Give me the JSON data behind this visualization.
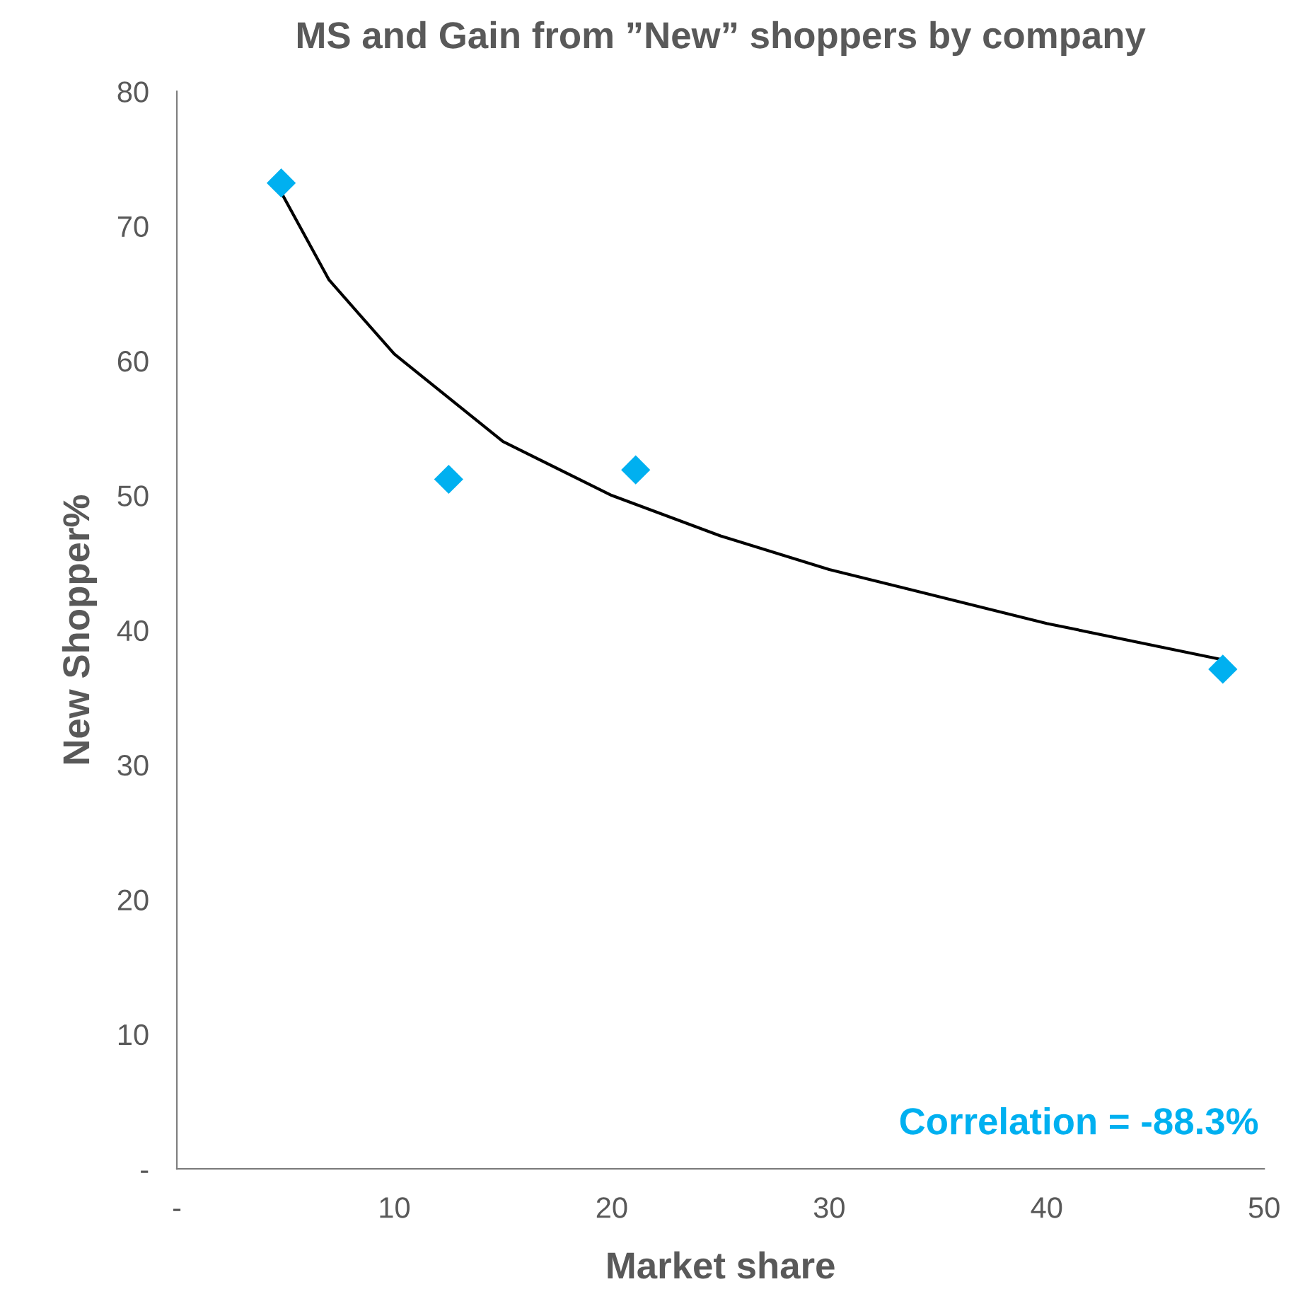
{
  "chart_data": {
    "type": "scatter",
    "title": "MS and Gain from ”New” shoppers by company",
    "xlabel": "Market share",
    "ylabel": "New Shopper%",
    "series": [
      {
        "marker": "diamond",
        "color": "#00b0f0",
        "x": [
          4.8,
          12.5,
          21.1,
          48.1
        ],
        "values": [
          73.2,
          51.2,
          51.9,
          37.1
        ]
      },
      {
        "type": "line",
        "marker": "none",
        "color": "#000000",
        "x": [
          4.8,
          7,
          10,
          15,
          20,
          25,
          30,
          40,
          48.1
        ],
        "values": [
          72.5,
          66,
          60.5,
          54,
          50,
          47,
          44.5,
          40.5,
          37.8
        ]
      }
    ],
    "grid": false,
    "legend": false,
    "xlim": [
      0,
      50
    ],
    "xticks": [
      {
        "value": 0,
        "label": "-"
      },
      10,
      20,
      30,
      40,
      50
    ],
    "ylim": [
      0,
      80
    ],
    "yticks": [
      {
        "value": 0,
        "label": "-"
      },
      10,
      20,
      30,
      40,
      50,
      60,
      70,
      80
    ],
    "annotations": [
      "Correlation = -88.3%"
    ]
  }
}
